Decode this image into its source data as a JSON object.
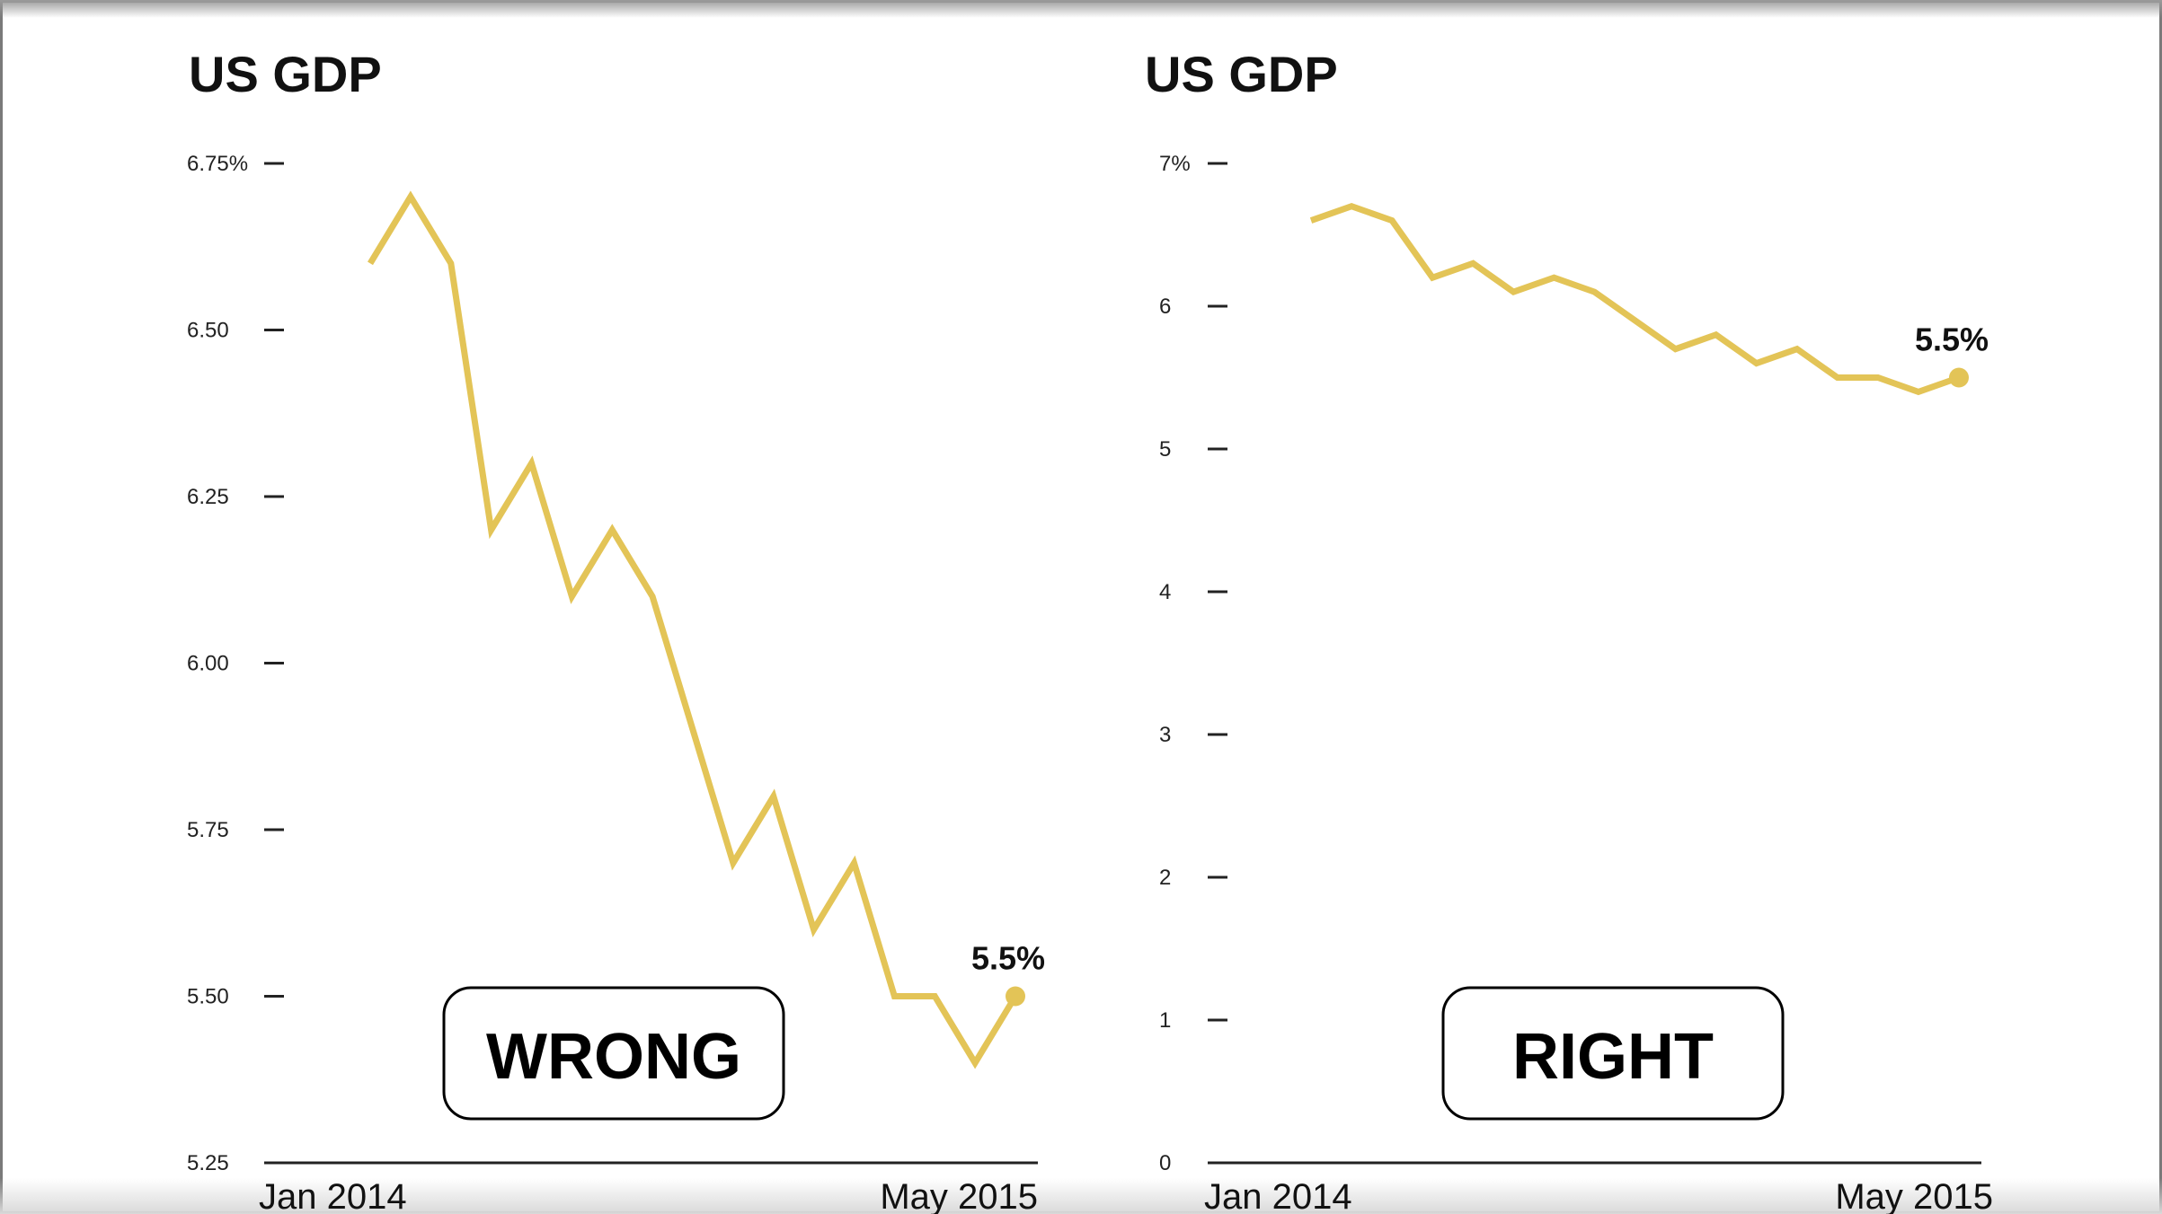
{
  "colors": {
    "line": "#e3c457",
    "axis": "#222222",
    "text": "#111111"
  },
  "chart_data": [
    {
      "type": "line",
      "title": "US GDP",
      "verdict": "WRONG",
      "ylim": [
        5.25,
        6.75
      ],
      "y_ticks": [
        {
          "value": 6.75,
          "label": "6.75%"
        },
        {
          "value": 6.5,
          "label": "6.50"
        },
        {
          "value": 6.25,
          "label": "6.25"
        },
        {
          "value": 6.0,
          "label": "6.00"
        },
        {
          "value": 5.75,
          "label": "5.75"
        },
        {
          "value": 5.5,
          "label": "5.50"
        },
        {
          "value": 5.25,
          "label": "5.25"
        }
      ],
      "x_labels": [
        "Jan 2014",
        "May 2015"
      ],
      "x": [
        "Jan 2014",
        "Feb 2014",
        "Mar 2014",
        "Apr 2014",
        "May 2014",
        "Jun 2014",
        "Jul 2014",
        "Aug 2014",
        "Sep 2014",
        "Oct 2014",
        "Nov 2014",
        "Dec 2014",
        "Jan 2015",
        "Feb 2015",
        "Mar 2015",
        "Apr 2015",
        "May 2015"
      ],
      "values": [
        6.6,
        6.7,
        6.6,
        6.2,
        6.3,
        6.1,
        6.2,
        6.1,
        5.9,
        5.7,
        5.8,
        5.6,
        5.7,
        5.5,
        5.5,
        5.4,
        5.5
      ],
      "end_label": "5.5%"
    },
    {
      "type": "line",
      "title": "US GDP",
      "verdict": "RIGHT",
      "ylim": [
        0,
        7
      ],
      "y_ticks": [
        {
          "value": 7,
          "label": "7%"
        },
        {
          "value": 6,
          "label": "6"
        },
        {
          "value": 5,
          "label": "5"
        },
        {
          "value": 4,
          "label": "4"
        },
        {
          "value": 3,
          "label": "3"
        },
        {
          "value": 2,
          "label": "2"
        },
        {
          "value": 1,
          "label": "1"
        },
        {
          "value": 0,
          "label": "0"
        }
      ],
      "x_labels": [
        "Jan 2014",
        "May 2015"
      ],
      "x": [
        "Jan 2014",
        "Feb 2014",
        "Mar 2014",
        "Apr 2014",
        "May 2014",
        "Jun 2014",
        "Jul 2014",
        "Aug 2014",
        "Sep 2014",
        "Oct 2014",
        "Nov 2014",
        "Dec 2014",
        "Jan 2015",
        "Feb 2015",
        "Mar 2015",
        "Apr 2015",
        "May 2015"
      ],
      "values": [
        6.6,
        6.7,
        6.6,
        6.2,
        6.3,
        6.1,
        6.2,
        6.1,
        5.9,
        5.7,
        5.8,
        5.6,
        5.7,
        5.5,
        5.5,
        5.4,
        5.5
      ],
      "end_label": "5.5%"
    }
  ]
}
